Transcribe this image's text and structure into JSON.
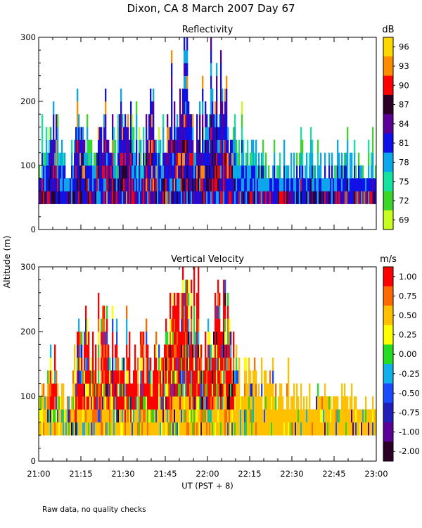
{
  "title": "Dixon, CA  8 March 2007  Day  67",
  "footnote": "Raw data, no quality checks",
  "ylabel": "Altitude (m)",
  "xlabel": "UT  (PST + 8)",
  "chart_data": [
    {
      "type": "heatmap",
      "title": "Reflectivity",
      "ylabel": "Altitude (m)",
      "xlabel": "UT  (PST + 8)",
      "x_tick_labels": [
        "21:00",
        "21:15",
        "21:30",
        "21:45",
        "22:00",
        "22:15",
        "22:30",
        "22:45",
        "23:00"
      ],
      "x_range": [
        "21:00",
        "23:00"
      ],
      "y_ticks": [
        0,
        100,
        200,
        300
      ],
      "ylim": [
        0,
        300
      ],
      "colorbar": {
        "unit": "dB",
        "tick_labels": [
          "96",
          "93",
          "90",
          "87",
          "84",
          "81",
          "78",
          "75",
          "72",
          "69"
        ],
        "colors": [
          "#ffd700",
          "#ff8c00",
          "#ff0000",
          "#2b0026",
          "#5a0096",
          "#1010e8",
          "#0aa7ea",
          "#14e3a0",
          "#3cd62a",
          "#c6ff1e"
        ]
      },
      "echo_base_m": 40,
      "echo_tops": [
        {
          "time": "21:00",
          "top_m": 140
        },
        {
          "time": "21:02",
          "top_m": 160
        },
        {
          "time": "21:05",
          "top_m": 200
        },
        {
          "time": "21:07",
          "top_m": 170
        },
        {
          "time": "21:10",
          "top_m": 120
        },
        {
          "time": "21:13",
          "top_m": 200
        },
        {
          "time": "21:15",
          "top_m": 240
        },
        {
          "time": "21:18",
          "top_m": 140
        },
        {
          "time": "21:21",
          "top_m": 200
        },
        {
          "time": "21:24",
          "top_m": 240
        },
        {
          "time": "21:27",
          "top_m": 160
        },
        {
          "time": "21:30",
          "top_m": 220
        },
        {
          "time": "21:33",
          "top_m": 180
        },
        {
          "time": "21:37",
          "top_m": 160
        },
        {
          "time": "21:40",
          "top_m": 230
        },
        {
          "time": "21:43",
          "top_m": 150
        },
        {
          "time": "21:46",
          "top_m": 230
        },
        {
          "time": "21:49",
          "top_m": 220
        },
        {
          "time": "21:52",
          "top_m": 300
        },
        {
          "time": "21:55",
          "top_m": 180
        },
        {
          "time": "21:58",
          "top_m": 230
        },
        {
          "time": "22:02",
          "top_m": 220
        },
        {
          "time": "22:05",
          "top_m": 300
        },
        {
          "time": "22:07",
          "top_m": 200
        },
        {
          "time": "22:10",
          "top_m": 170
        },
        {
          "time": "22:15",
          "top_m": 150
        },
        {
          "time": "22:20",
          "top_m": 130
        },
        {
          "time": "22:30",
          "top_m": 120
        },
        {
          "time": "22:45",
          "top_m": 120
        },
        {
          "time": "23:00",
          "top_m": 120
        }
      ]
    },
    {
      "type": "heatmap",
      "title": "Vertical Velocity",
      "ylabel": "Altitude (m)",
      "xlabel": "UT  (PST + 8)",
      "x_tick_labels": [
        "21:00",
        "21:15",
        "21:30",
        "21:45",
        "22:00",
        "22:15",
        "22:30",
        "22:45",
        "23:00"
      ],
      "x_range": [
        "21:00",
        "23:00"
      ],
      "y_ticks": [
        0,
        100,
        200,
        300
      ],
      "ylim": [
        0,
        300
      ],
      "colorbar": {
        "unit": "m/s",
        "tick_labels": [
          "1.00",
          "0.75",
          "0.50",
          "0.25",
          "0.00",
          "-0.25",
          "-0.50",
          "-0.75",
          "-1.00",
          "-2.00"
        ],
        "colors": [
          "#ff0000",
          "#ff6a00",
          "#ffc000",
          "#ffff00",
          "#22dd22",
          "#10b0ea",
          "#1a4cff",
          "#2020b8",
          "#5a0096",
          "#2b0026"
        ]
      },
      "echo_base_m": 40,
      "echo_tops": [
        {
          "time": "21:00",
          "top_m": 120
        },
        {
          "time": "21:05",
          "top_m": 200
        },
        {
          "time": "21:10",
          "top_m": 120
        },
        {
          "time": "21:15",
          "top_m": 240
        },
        {
          "time": "21:20",
          "top_m": 200
        },
        {
          "time": "21:25",
          "top_m": 240
        },
        {
          "time": "21:30",
          "top_m": 220
        },
        {
          "time": "21:35",
          "top_m": 180
        },
        {
          "time": "21:40",
          "top_m": 220
        },
        {
          "time": "21:45",
          "top_m": 230
        },
        {
          "time": "21:52",
          "top_m": 300
        },
        {
          "time": "21:58",
          "top_m": 230
        },
        {
          "time": "22:05",
          "top_m": 300
        },
        {
          "time": "22:10",
          "top_m": 180
        },
        {
          "time": "22:15",
          "top_m": 160
        },
        {
          "time": "22:30",
          "top_m": 120
        },
        {
          "time": "22:45",
          "top_m": 120
        },
        {
          "time": "23:00",
          "top_m": 100
        }
      ]
    }
  ]
}
